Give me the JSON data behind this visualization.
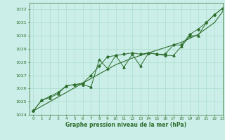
{
  "title": "Graphe pression niveau de la mer (hPa)",
  "bg_color": "#cceee8",
  "grid_color": "#aaddcc",
  "line_color": "#2d6e2d",
  "xlim": [
    -0.5,
    23
  ],
  "ylim": [
    1024,
    1032.5
  ],
  "yticks": [
    1024,
    1025,
    1026,
    1027,
    1028,
    1029,
    1030,
    1031,
    1032
  ],
  "xticks": [
    0,
    1,
    2,
    3,
    4,
    5,
    6,
    7,
    8,
    9,
    10,
    11,
    12,
    13,
    14,
    15,
    16,
    17,
    18,
    19,
    20,
    21,
    22,
    23
  ],
  "x": [
    0,
    1,
    2,
    3,
    4,
    5,
    6,
    7,
    8,
    9,
    10,
    11,
    12,
    13,
    14,
    15,
    16,
    17,
    18,
    19,
    20,
    21,
    22,
    23
  ],
  "series_zigzag": [
    1024.3,
    1025.1,
    1025.3,
    1025.6,
    1026.2,
    1026.3,
    1026.3,
    1026.1,
    1028.2,
    1027.5,
    1028.5,
    1027.6,
    1028.6,
    1027.7,
    1028.7,
    1028.6,
    1028.5,
    1028.5,
    1029.2,
    1030.0,
    1030.0,
    1031.0,
    1031.6,
    1032.1
  ],
  "series_smooth": [
    1024.3,
    1025.1,
    1025.4,
    1025.7,
    1026.2,
    1026.3,
    1026.4,
    1027.0,
    1027.7,
    1028.4,
    1028.5,
    1028.6,
    1028.7,
    1028.6,
    1028.7,
    1028.6,
    1028.6,
    1029.3,
    1029.3,
    1030.1,
    1030.5,
    1031.0,
    1031.6,
    1032.1
  ],
  "trend": [
    1024.3,
    1024.65,
    1025.0,
    1025.35,
    1025.7,
    1026.05,
    1026.4,
    1026.75,
    1027.1,
    1027.45,
    1027.8,
    1028.05,
    1028.3,
    1028.5,
    1028.7,
    1028.9,
    1029.1,
    1029.3,
    1029.5,
    1029.8,
    1030.1,
    1030.55,
    1031.0,
    1031.85
  ]
}
